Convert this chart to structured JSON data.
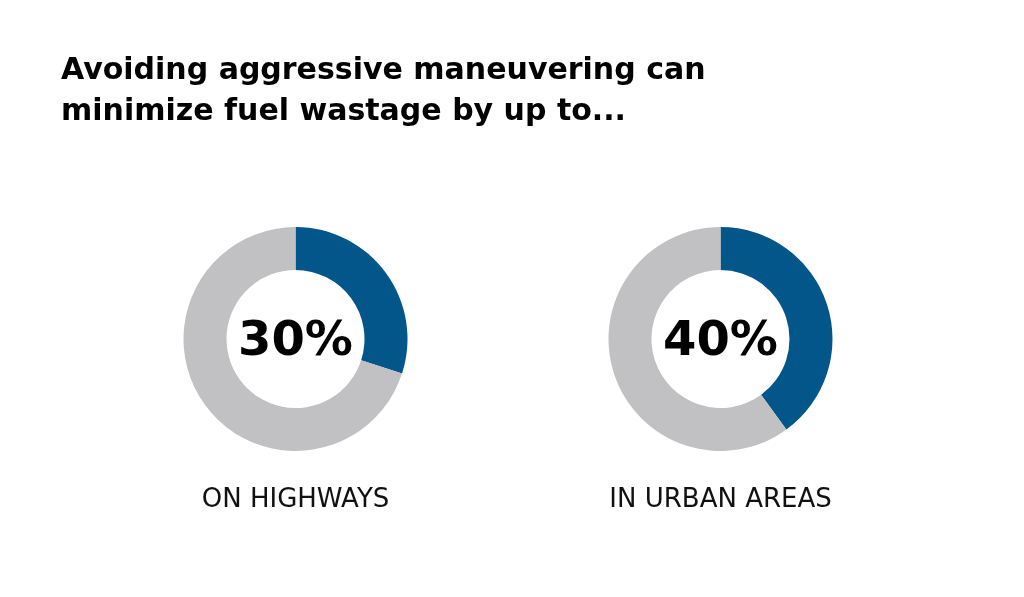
{
  "chart_data": [
    {
      "type": "donut",
      "title": "Avoiding aggressive maneuvering can minimize fuel wastage by up to...",
      "categories": [
        null,
        null
      ],
      "values": [
        30,
        70
      ],
      "colors": [
        "#02568a",
        "#c1c1c3"
      ],
      "value_labels": [
        "30%",
        null
      ],
      "xlabel": "ON HIGHWAYS"
    },
    {
      "type": "donut",
      "categories": [
        null,
        null
      ],
      "values": [
        40,
        60
      ],
      "colors": [
        "#02568a",
        "#c1c1c3"
      ],
      "value_labels": [
        "40%",
        null
      ],
      "xlabel": "IN URBAN AREAS"
    }
  ]
}
